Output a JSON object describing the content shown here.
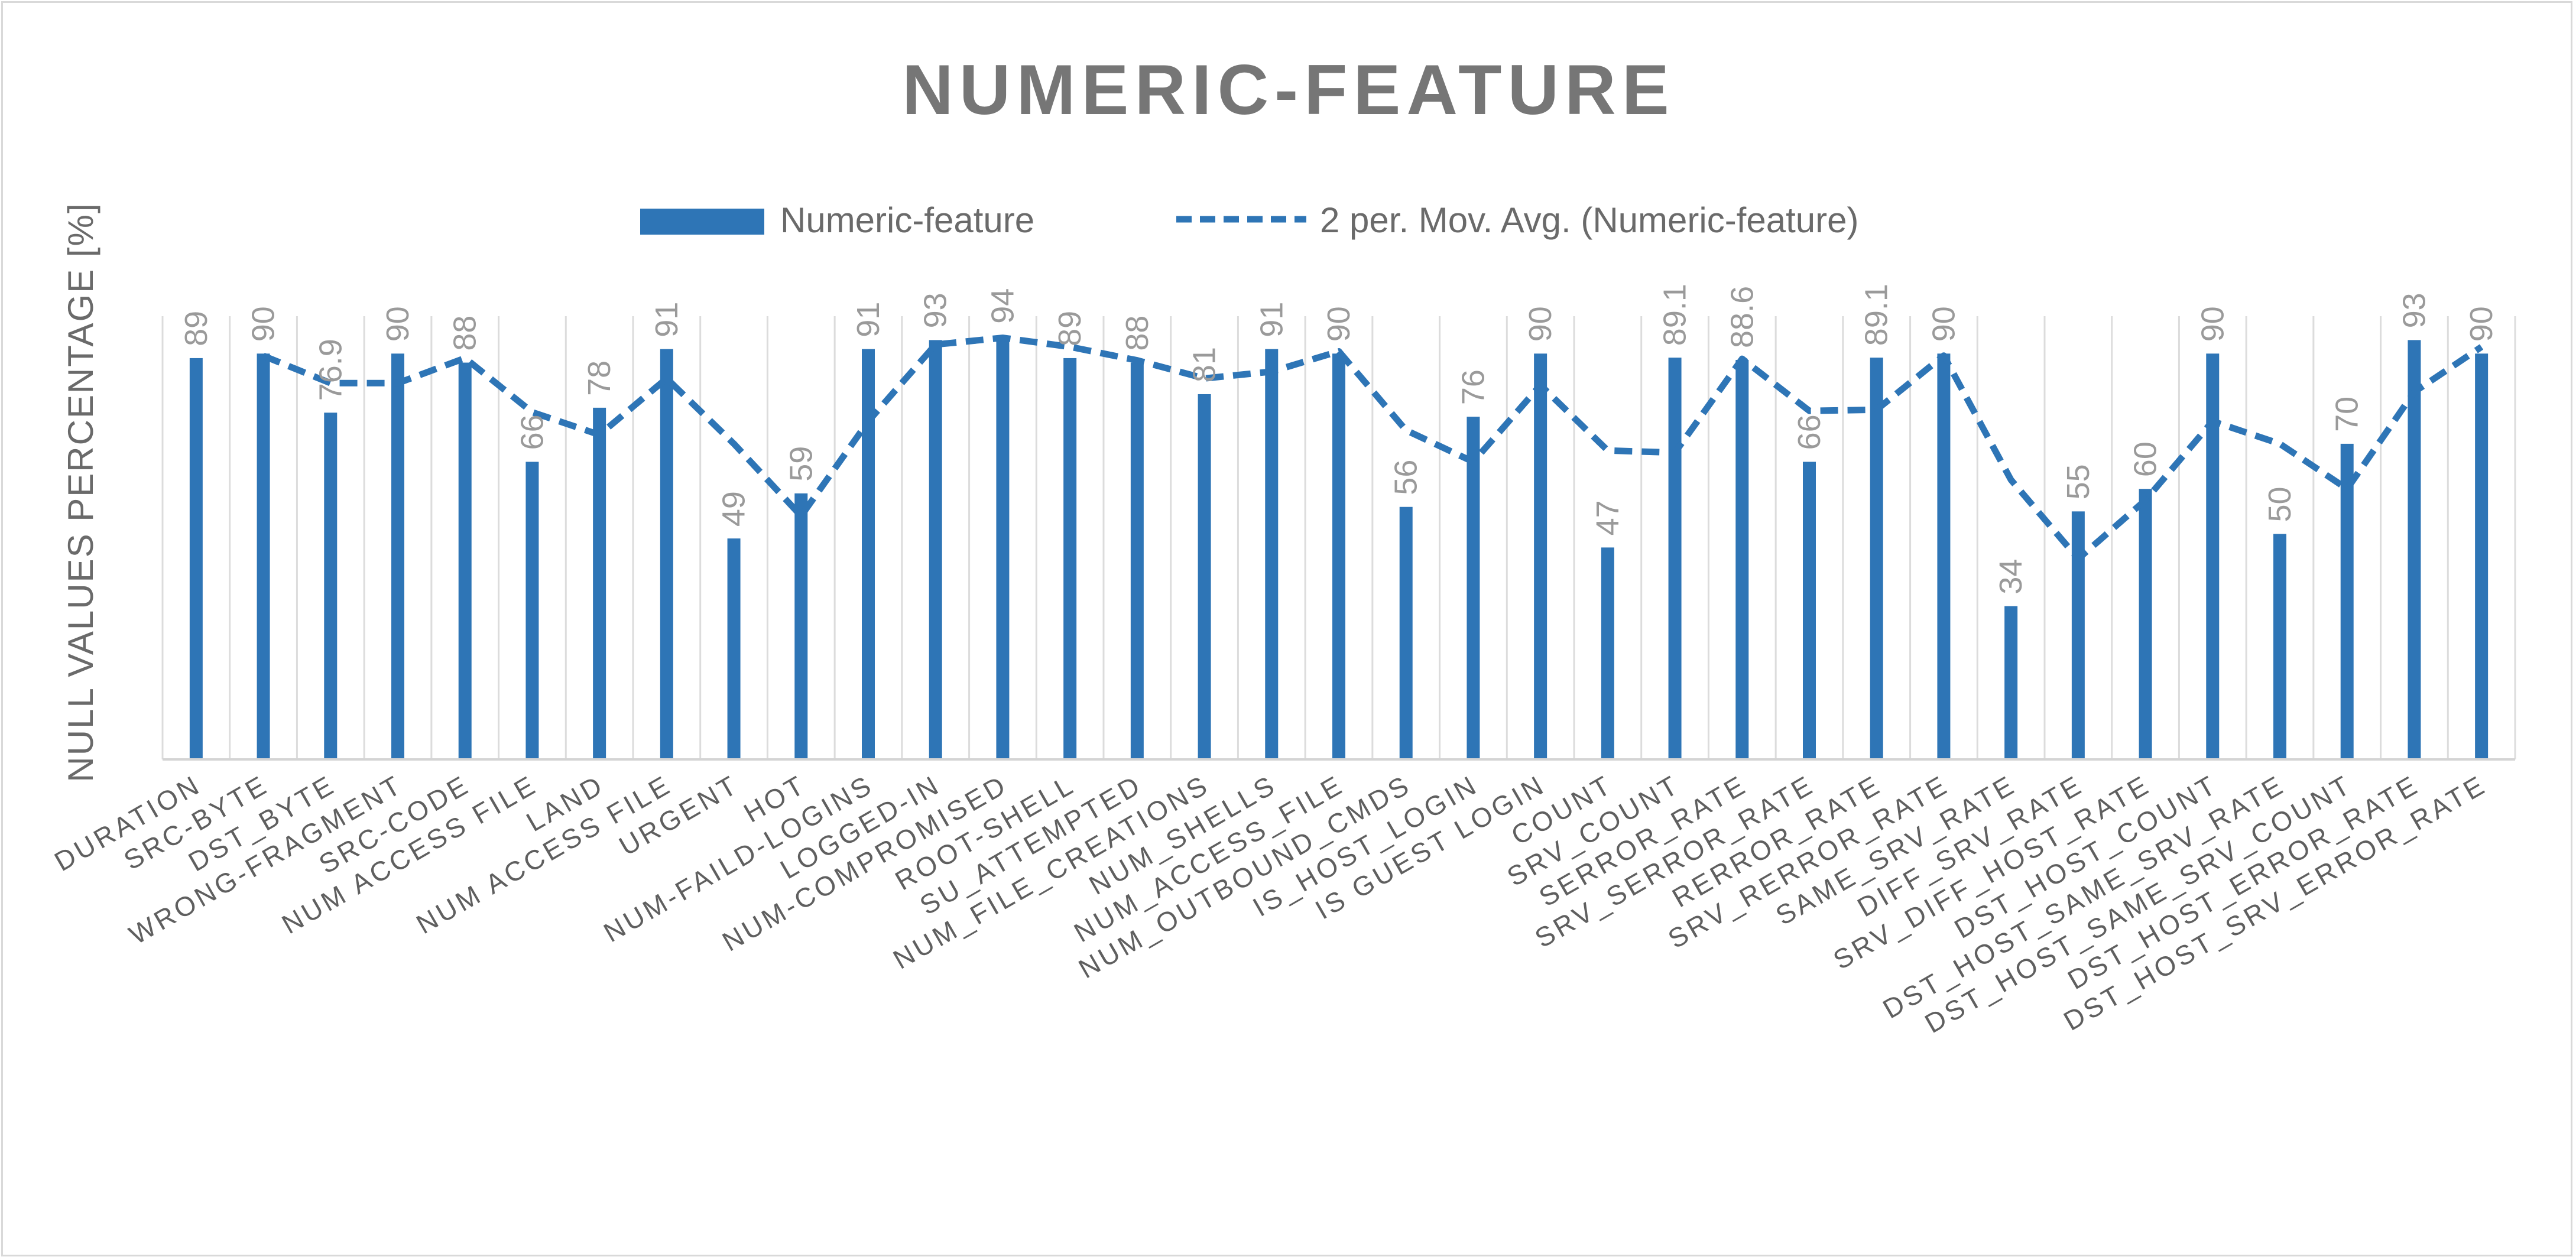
{
  "chart_data": {
    "type": "bar",
    "title": "NUMERIC-FEATURE",
    "ylabel": "NULL VALUES PERCENTAGE [%]",
    "xlabel": "",
    "ylim": [
      0,
      100
    ],
    "grid": true,
    "legend_position": "top",
    "categories": [
      "DURATION",
      "SRC-BYTE",
      "DST_BYTE",
      "WRONG-FRAGMENT",
      "SRC-CODE",
      "NUM ACCESS FILE",
      "LAND",
      "NUM ACCESS FILE",
      "URGENT",
      "HOT",
      "NUM-FAILD-LOGINS",
      "LOGGED-IN",
      "NUM-COMPROMISED",
      "ROOT-SHELL",
      "SU_ATTEMPTED",
      "NUM_FILE_CREATIONS",
      "NUM_SHELLS",
      "NUM_ACCESS_FILE",
      "NUM_OUTBOUND_CMDS",
      "IS_HOST_LOGIN",
      "IS GUEST LOGIN",
      "COUNT",
      "SRV_COUNT",
      "SERROR_RATE",
      "SRV_SERROR_RATE",
      "RERROR_RATE",
      "SRV_RERROR_RATE",
      "SAME_SRV_RATE",
      "DIFF_SRV_RATE",
      "SRV_DIFF_HOST_RATE",
      "DST_HOST_COUNT",
      "DST_HOST_SAME_SRV_RATE",
      "DST_HOST_SAME_SRV_COUNT",
      "DST_HOST_ERROR_RATE",
      "DST_HOST_SRV_ERROR_RATE"
    ],
    "series": [
      {
        "name": "Numeric-feature",
        "kind": "bar",
        "color": "#2e75b6",
        "values": [
          89,
          90,
          76.9,
          90,
          88,
          66,
          78,
          91,
          49,
          59,
          91,
          93,
          94,
          89,
          88,
          81,
          91,
          90,
          56,
          76,
          90,
          47,
          89.1,
          88.6,
          66,
          89.1,
          90,
          34,
          55,
          60,
          90,
          50,
          70,
          93,
          90
        ],
        "labels": [
          "89",
          "90",
          "76.9",
          "90",
          "88",
          "66",
          "78",
          "91",
          "49",
          "59",
          "91",
          "93",
          "94",
          "89",
          "88",
          "81",
          "91",
          "90",
          "56",
          "76",
          "90",
          "47",
          "89.1",
          "88.6",
          "66",
          "89.1",
          "90",
          "34",
          "55",
          "60",
          "90",
          "50",
          "70",
          "93",
          "90"
        ]
      },
      {
        "name": "2 per. Mov. Avg. (Numeric-feature)",
        "kind": "moving-average",
        "period": 2,
        "color": "#2e75b6"
      }
    ]
  }
}
